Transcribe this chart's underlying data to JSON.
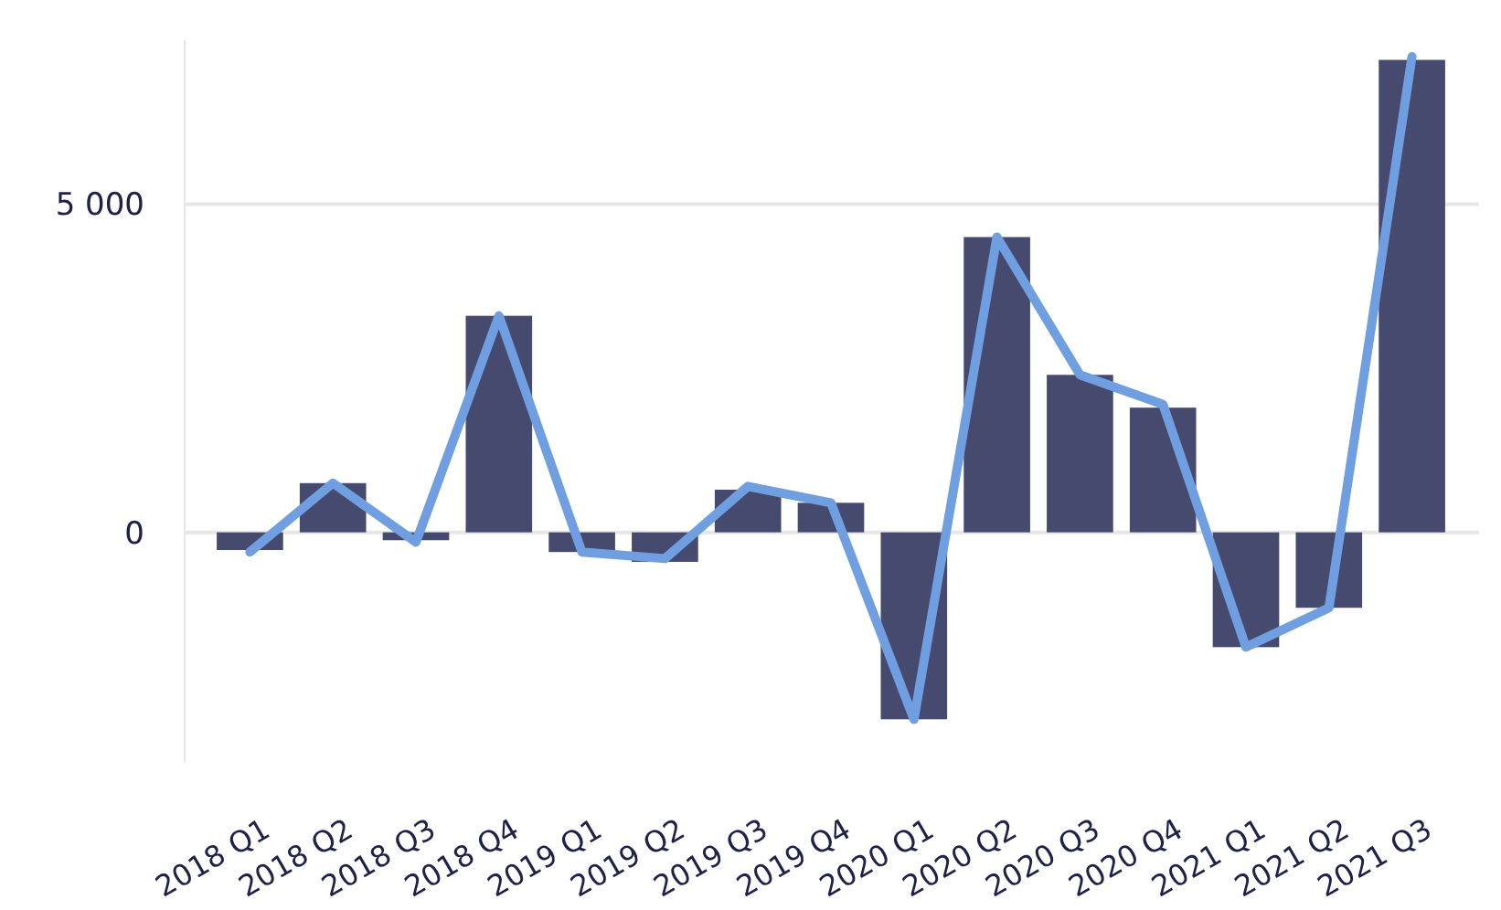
{
  "chart_data": {
    "type": "bar",
    "categories": [
      "2018 Q1",
      "2018 Q2",
      "2018 Q3",
      "2018 Q4",
      "2019 Q1",
      "2019 Q2",
      "2019 Q3",
      "2019 Q4",
      "2020 Q1",
      "2020 Q2",
      "2020 Q3",
      "2020 Q4",
      "2021 Q1",
      "2021 Q2",
      "2021 Q3"
    ],
    "series": [
      {
        "color": "#474a6f",
        "values": [
          -270,
          750,
          -120,
          3300,
          -300,
          -450,
          650,
          450,
          -2850,
          4500,
          2400,
          1900,
          -1750,
          -1150,
          7200
        ]
      },
      {
        "type": "line",
        "color": "#6f9fe0",
        "values": [
          -300,
          750,
          -150,
          3300,
          -300,
          -400,
          700,
          450,
          -2850,
          4500,
          2400,
          1950,
          -1750,
          -1150,
          7250
        ]
      }
    ],
    "ylim": [
      -3500,
      7500
    ],
    "yticks": [
      0,
      {
        "value": 5000,
        "label": "5 000"
      }
    ],
    "grid": "y"
  }
}
